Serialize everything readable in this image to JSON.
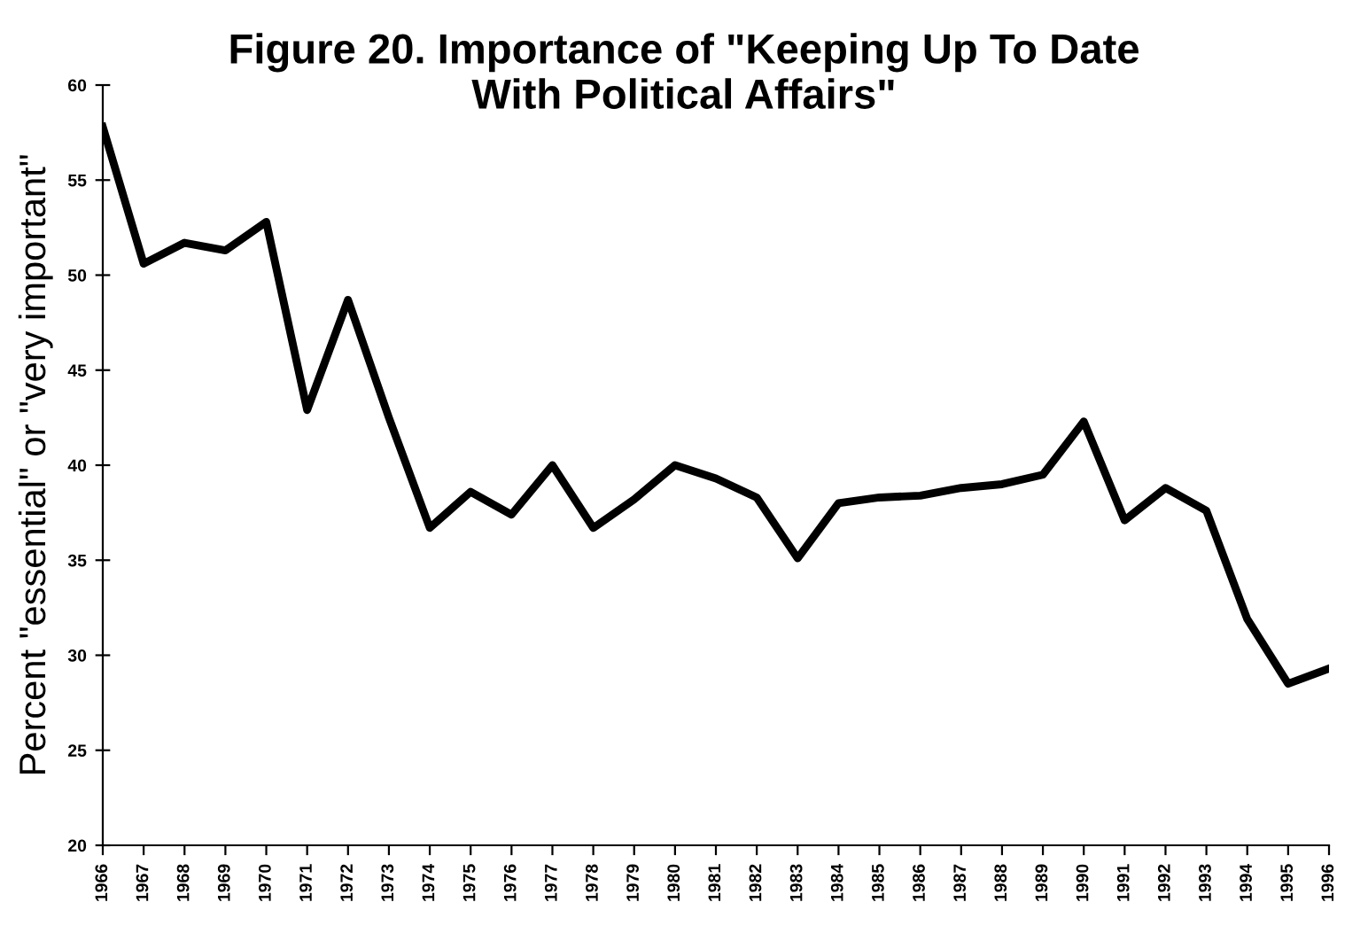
{
  "chart_data": {
    "type": "line",
    "title": "Figure 20. Importance of \"Keeping Up To Date\nWith Political Affairs\"",
    "ylabel": "Percent \"essential\" or \"very important\"",
    "categories": [
      "1966",
      "1967",
      "1968",
      "1969",
      "1970",
      "1971",
      "1972",
      "1973",
      "1974",
      "1975",
      "1976",
      "1977",
      "1978",
      "1979",
      "1980",
      "1981",
      "1982",
      "1983",
      "1984",
      "1985",
      "1986",
      "1987",
      "1988",
      "1989",
      "1990",
      "1991",
      "1992",
      "1993",
      "1994",
      "1995",
      "1996"
    ],
    "series": [
      {
        "color": "#000000",
        "values": [
          57.8,
          50.6,
          51.7,
          51.3,
          52.8,
          42.9,
          48.7,
          42.5,
          36.7,
          38.6,
          37.4,
          40.0,
          36.7,
          38.2,
          40.0,
          39.3,
          38.3,
          35.1,
          38.0,
          38.3,
          38.4,
          38.8,
          39.0,
          39.5,
          42.3,
          37.1,
          38.8,
          37.6,
          31.9,
          28.5,
          29.3
        ]
      }
    ],
    "ylim": [
      20,
      60
    ],
    "yticks": [
      20,
      25,
      30,
      35,
      40,
      45,
      50,
      55,
      60
    ],
    "grid": false,
    "legend": false,
    "marker": "none",
    "line_style": "solid"
  }
}
